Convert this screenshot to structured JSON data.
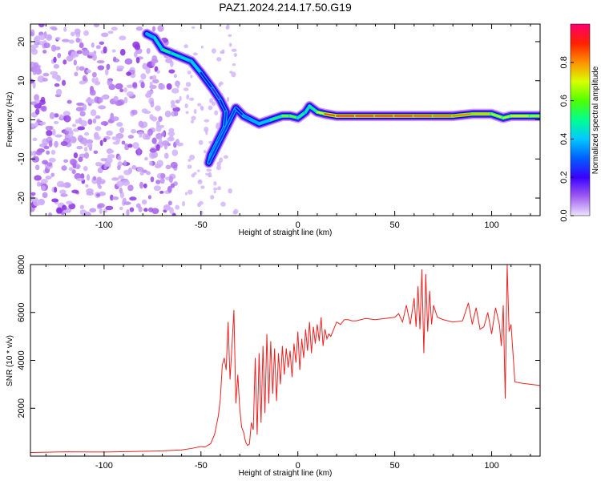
{
  "figure": {
    "title": "PAZ1.2024.214.17.50.G19"
  },
  "chart_data": [
    {
      "type": "heatmap",
      "xlabel": "Height of straight line (km)",
      "ylabel": "Frequency (Hz)",
      "xlim": [
        -138,
        125
      ],
      "ylim": [
        -24.5,
        24.5
      ],
      "xticks": [
        -100,
        -50,
        0,
        50,
        100
      ],
      "xtick_labels": [
        "-100",
        "-50",
        "0",
        "50",
        "100"
      ],
      "yticks": [
        -20,
        -10,
        0,
        10,
        20
      ],
      "ytick_labels": [
        "-20",
        "-10",
        "0",
        "10",
        "20"
      ],
      "colorbar": {
        "label": "Normalized spectral amplitude",
        "range": [
          0,
          1
        ],
        "ticks": [
          0.0,
          0.2,
          0.4,
          0.6,
          0.8
        ],
        "tick_labels": [
          "0.0",
          "0.2",
          "0.4",
          "0.6",
          "0.8"
        ],
        "colors": [
          "#e0d0ff",
          "#8a2be2",
          "#0000ff",
          "#00bfff",
          "#00ff80",
          "#7cff00",
          "#ffff00",
          "#ff8000",
          "#ff0000",
          "#ff0080"
        ]
      },
      "ridge": [
        {
          "x": -78,
          "y": 22,
          "v": 0.3
        },
        {
          "x": -74,
          "y": 21,
          "v": 0.35
        },
        {
          "x": -70,
          "y": 18,
          "v": 0.45
        },
        {
          "x": -65,
          "y": 17,
          "v": 0.5
        },
        {
          "x": -60,
          "y": 16,
          "v": 0.35
        },
        {
          "x": -55,
          "y": 15,
          "v": 0.45
        },
        {
          "x": -50,
          "y": 12,
          "v": 0.3
        },
        {
          "x": -44,
          "y": 8,
          "v": 0.15
        },
        {
          "x": -40,
          "y": 5,
          "v": 0.15
        },
        {
          "x": -37,
          "y": 2,
          "v": 0.25
        },
        {
          "x": -38,
          "y": -2,
          "v": 0.25
        },
        {
          "x": -42,
          "y": -6,
          "v": 0.25
        },
        {
          "x": -45,
          "y": -9,
          "v": 0.3
        },
        {
          "x": -46,
          "y": -11,
          "v": 0.3
        },
        {
          "x": -32,
          "y": 3,
          "v": 0.2
        },
        {
          "x": -28,
          "y": 1,
          "v": 0.25
        },
        {
          "x": -24,
          "y": 0,
          "v": 0.35
        },
        {
          "x": -20,
          "y": -1,
          "v": 0.3
        },
        {
          "x": -14,
          "y": 0,
          "v": 0.4
        },
        {
          "x": -8,
          "y": 1,
          "v": 0.55
        },
        {
          "x": -4,
          "y": 1,
          "v": 0.6
        },
        {
          "x": 0,
          "y": 0.5,
          "v": 0.5
        },
        {
          "x": 4,
          "y": 2,
          "v": 0.45
        },
        {
          "x": 6,
          "y": 3.5,
          "v": 0.45
        },
        {
          "x": 10,
          "y": 2,
          "v": 0.5
        },
        {
          "x": 14,
          "y": 1.5,
          "v": 0.8
        },
        {
          "x": 20,
          "y": 1,
          "v": 0.85
        },
        {
          "x": 30,
          "y": 1,
          "v": 0.85
        },
        {
          "x": 40,
          "y": 1,
          "v": 0.85
        },
        {
          "x": 50,
          "y": 1,
          "v": 0.85
        },
        {
          "x": 60,
          "y": 1,
          "v": 0.85
        },
        {
          "x": 70,
          "y": 1,
          "v": 0.8
        },
        {
          "x": 80,
          "y": 1,
          "v": 0.8
        },
        {
          "x": 90,
          "y": 1.5,
          "v": 0.75
        },
        {
          "x": 100,
          "y": 1.5,
          "v": 0.7
        },
        {
          "x": 106,
          "y": 0.5,
          "v": 0.55
        },
        {
          "x": 110,
          "y": 1,
          "v": 0.7
        },
        {
          "x": 120,
          "y": 1,
          "v": 0.65
        },
        {
          "x": 125,
          "y": 1,
          "v": 0.6
        }
      ],
      "noise_region": {
        "x": [
          -138,
          -62
        ],
        "y": [
          -24.5,
          24.5
        ],
        "v": [
          0.02,
          0.12
        ]
      }
    },
    {
      "type": "line",
      "xlabel": "Height of straight line (km)",
      "ylabel": "SNR (10 * v/v)",
      "xlim": [
        -138,
        125
      ],
      "ylim": [
        0,
        8000
      ],
      "xticks": [
        -100,
        -50,
        0,
        50,
        100
      ],
      "xtick_labels": [
        "-100",
        "-50",
        "0",
        "50",
        "100"
      ],
      "yticks": [
        2000,
        4000,
        6000,
        8000
      ],
      "ytick_labels": [
        "2000",
        "4000",
        "6000",
        "8000"
      ],
      "color": "#ee2222",
      "series": [
        {
          "x": [
            -138,
            -120,
            -100,
            -80,
            -70,
            -60,
            -55,
            -50,
            -48,
            -45,
            -43,
            -42,
            -41,
            -40,
            -39,
            -38,
            -37,
            -36,
            -35,
            -34,
            -33,
            -32,
            -31,
            -30,
            -29,
            -28,
            -27,
            -26,
            -25,
            -24,
            -23,
            -22,
            -21,
            -20,
            -19,
            -18,
            -17,
            -16,
            -15,
            -14,
            -13,
            -12,
            -11,
            -10,
            -9,
            -8,
            -7,
            -6,
            -5,
            -4,
            -3,
            -2,
            -1,
            0,
            1,
            2,
            3,
            4,
            5,
            6,
            7,
            8,
            9,
            10,
            11,
            12,
            13,
            14,
            15,
            16,
            17,
            18,
            19,
            20,
            22,
            24,
            26,
            28,
            30,
            35,
            40,
            45,
            50,
            52,
            54,
            56,
            58,
            60,
            61,
            62,
            63,
            64,
            65,
            66,
            67,
            68,
            69,
            70,
            72,
            75,
            80,
            85,
            88,
            90,
            92,
            94,
            96,
            98,
            100,
            102,
            104,
            105,
            106,
            107,
            108,
            109,
            110,
            112,
            115,
            120,
            125
          ],
          "y": [
            150,
            180,
            170,
            200,
            220,
            260,
            320,
            400,
            380,
            520,
            900,
            1300,
            1700,
            2400,
            3800,
            4100,
            3600,
            5600,
            3200,
            4600,
            6100,
            2200,
            3400,
            2000,
            1200,
            1000,
            600,
            450,
            500,
            1400,
            1100,
            4100,
            900,
            4300,
            1400,
            4600,
            1800,
            5100,
            2200,
            4800,
            2600,
            4500,
            2300,
            4300,
            3000,
            4600,
            3400,
            4500,
            3700,
            4400,
            3300,
            4700,
            3900,
            5200,
            3600,
            4900,
            4100,
            5300,
            4400,
            5600,
            4300,
            5400,
            4700,
            5500,
            4800,
            5800,
            4600,
            5300,
            4900,
            5100,
            5000,
            5200,
            5400,
            5600,
            5500,
            5700,
            5700,
            5650,
            5650,
            5750,
            5700,
            5750,
            5800,
            5950,
            5600,
            6300,
            5500,
            6600,
            5400,
            7100,
            5300,
            7800,
            4300,
            7600,
            5200,
            6900,
            5500,
            6300,
            5800,
            5700,
            5600,
            5650,
            6400,
            5500,
            6200,
            5300,
            5400,
            6000,
            5100,
            6200,
            5500,
            4600,
            6300,
            2400,
            8000,
            5200,
            5500,
            3100,
            3050,
            3000,
            2950
          ]
        }
      ]
    }
  ]
}
